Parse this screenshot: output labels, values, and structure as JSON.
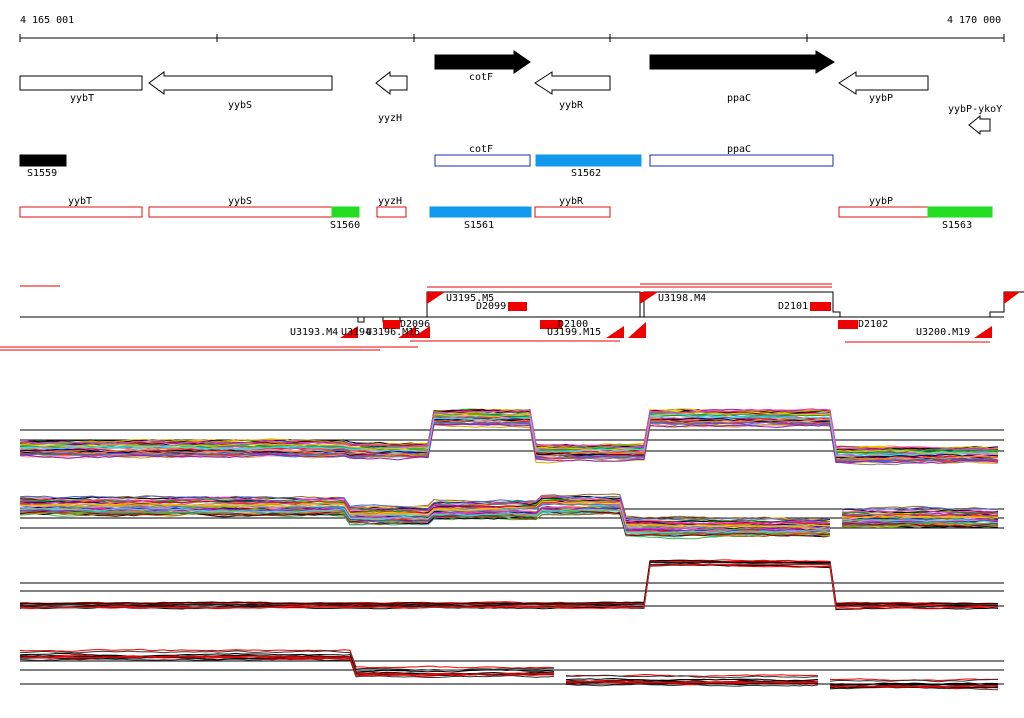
{
  "ruler": {
    "start_label": "4 165 001",
    "end_label": "4 170 000"
  },
  "genes": [
    {
      "name": "yybT",
      "strand": "+",
      "filled": false
    },
    {
      "name": "yybS",
      "strand": "-",
      "filled": false
    },
    {
      "name": "yyzH",
      "strand": "-",
      "filled": false
    },
    {
      "name": "cotF",
      "strand": "+",
      "filled": true
    },
    {
      "name": "yybR",
      "strand": "-",
      "filled": false
    },
    {
      "name": "ppaC",
      "strand": "+",
      "filled": true
    },
    {
      "name": "yybP",
      "strand": "-",
      "filled": false
    },
    {
      "name": "yybP-ykoY",
      "strand": "-",
      "filled": false
    }
  ],
  "features_upper": [
    {
      "label": "S1559",
      "color": "#000000",
      "style": "filled"
    },
    {
      "label": "cotF",
      "color": "#1a2bb0",
      "style": "outline"
    },
    {
      "label": "S1562",
      "color": "#1199ee",
      "style": "filled"
    },
    {
      "label": "ppaC",
      "color": "#1a2bb0",
      "style": "outline"
    }
  ],
  "features_lower": [
    {
      "label": "yybT",
      "color": "#dd1111",
      "style": "outline"
    },
    {
      "label": "yybS",
      "color": "#dd1111",
      "style": "outline"
    },
    {
      "label": "S1560",
      "color": "#22dd22",
      "style": "filled"
    },
    {
      "label": "yyzH",
      "color": "#dd1111",
      "style": "outline"
    },
    {
      "label": "S1561",
      "color": "#1199ee",
      "style": "filled"
    },
    {
      "label": "yybR",
      "color": "#dd1111",
      "style": "outline"
    },
    {
      "label": "yybP",
      "color": "#dd1111",
      "style": "outline"
    },
    {
      "label": "S1563",
      "color": "#22dd22",
      "style": "filled"
    }
  ],
  "segments": {
    "labels": [
      "U3195.M5",
      "D2099",
      "U3198.M4",
      "D2101",
      "D2096",
      "D2100",
      "D2102",
      "U3193.M4",
      "U3194",
      "U3196.M15",
      "U3199.M15",
      "U3200.M19"
    ]
  },
  "colors": {
    "red": "#ee0000",
    "black": "#000000",
    "blue": "#1199ee",
    "green": "#22dd22",
    "navy": "#1a2bb0"
  }
}
